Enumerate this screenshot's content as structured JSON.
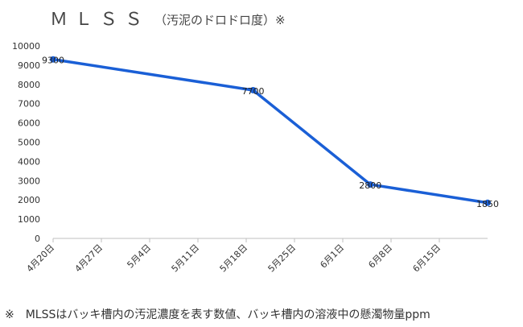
{
  "chart_data": {
    "type": "line",
    "title": "ＭＬＳＳ",
    "subtitle": "（汚泥のドロドロ度）※",
    "ylim": [
      0,
      10000
    ],
    "yticks": [
      0,
      1000,
      2000,
      3000,
      4000,
      5000,
      6000,
      7000,
      8000,
      9000,
      10000
    ],
    "xticks": [
      "4月20日",
      "4月27日",
      "5月4日",
      "5月11日",
      "5月18日",
      "5月25日",
      "6月1日",
      "6月8日",
      "6月15日"
    ],
    "xrange": [
      "2019-04-20",
      "2019-06-22"
    ],
    "series": [
      {
        "values": [
          {
            "x": "2019-04-20",
            "y": 9300,
            "label": "9300"
          },
          {
            "x": "2019-05-19",
            "y": 7700,
            "label": "7700"
          },
          {
            "x": "2019-06-05",
            "y": 2800,
            "label": "2800"
          },
          {
            "x": "2019-06-22",
            "y": 1850,
            "label": "1850"
          }
        ]
      }
    ],
    "grid": false,
    "line_color": "#1a5fd6"
  },
  "footnote": "※　MLSSはバッキ槽内の汚泥濃度を表す数値、バッキ槽内の溶液中の懸濁物量ppm"
}
